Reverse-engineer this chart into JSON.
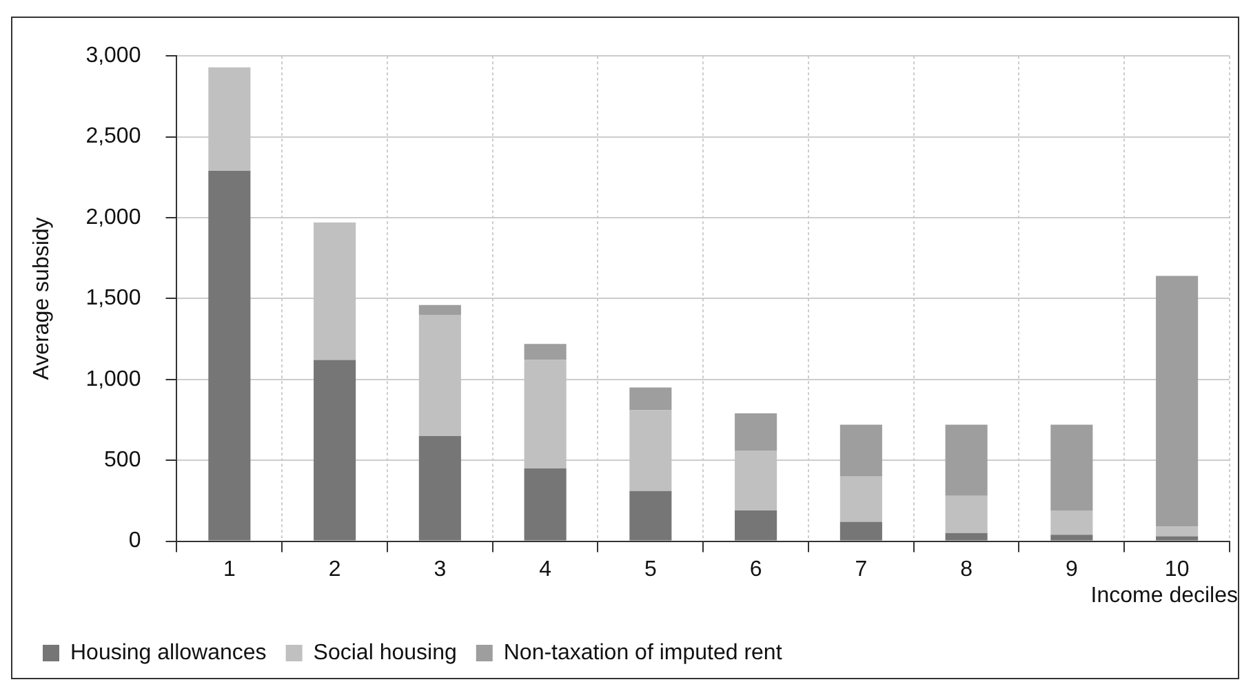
{
  "chart_data": {
    "type": "bar",
    "stacked": true,
    "xlabel": "Income deciles",
    "ylabel": "Average subsidy",
    "categories": [
      "1",
      "2",
      "3",
      "4",
      "5",
      "6",
      "7",
      "8",
      "9",
      "10"
    ],
    "series": [
      {
        "name": "Housing allowances",
        "color": "#767676",
        "values": [
          2290,
          1120,
          650,
          450,
          310,
          190,
          120,
          50,
          40,
          30
        ]
      },
      {
        "name": "Social housing",
        "color": "#c0c0c0",
        "values": [
          640,
          850,
          750,
          670,
          500,
          370,
          280,
          230,
          150,
          60
        ]
      },
      {
        "name": "Non-taxation of imputed rent",
        "color": "#9e9e9e",
        "values": [
          null,
          null,
          60,
          100,
          140,
          230,
          320,
          440,
          530,
          1550
        ]
      }
    ],
    "ylim": [
      0,
      3000
    ],
    "yticks": [
      {
        "value": 0,
        "label": "0"
      },
      {
        "value": 500,
        "label": "500"
      },
      {
        "value": 1000,
        "label": "1,000"
      },
      {
        "value": 1500,
        "label": "1,500"
      },
      {
        "value": 2000,
        "label": "2,000"
      },
      {
        "value": 2500,
        "label": "2,500"
      },
      {
        "value": 3000,
        "label": "3,000"
      }
    ],
    "grid": true,
    "legend": "bottom"
  }
}
